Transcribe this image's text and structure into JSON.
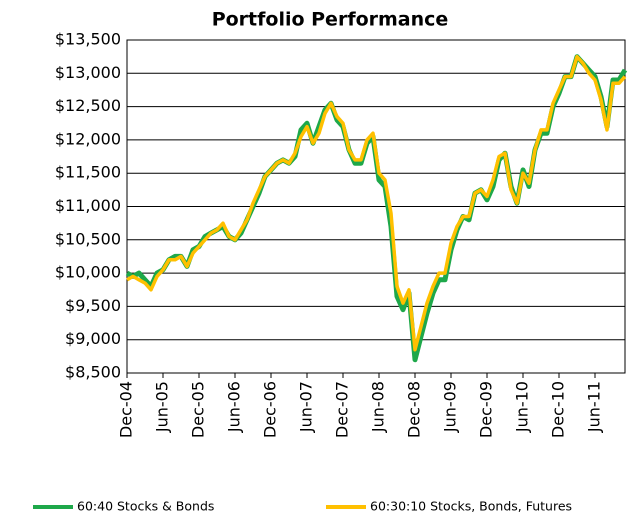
{
  "chart_data": {
    "type": "line",
    "title": "Portfolio Performance",
    "categories": [
      "Dec-04",
      null,
      null,
      null,
      null,
      null,
      "Jun-05",
      null,
      null,
      null,
      null,
      null,
      "Dec-05",
      null,
      null,
      null,
      null,
      null,
      "Jun-06",
      null,
      null,
      null,
      null,
      null,
      "Dec-06",
      null,
      null,
      null,
      null,
      null,
      "Jun-07",
      null,
      null,
      null,
      null,
      null,
      "Dec-07",
      null,
      null,
      null,
      null,
      null,
      "Jun-08",
      null,
      null,
      null,
      null,
      null,
      "Dec-08",
      null,
      null,
      null,
      null,
      null,
      "Jun-09",
      null,
      null,
      null,
      null,
      null,
      "Dec-09",
      null,
      null,
      null,
      null,
      null,
      "Jun-10",
      null,
      null,
      null,
      null,
      null,
      "Dec-10",
      null,
      null,
      null,
      null,
      null,
      "Jun-11",
      null,
      null,
      null,
      null,
      null
    ],
    "series": [
      {
        "name": "60:40 Stocks & Bonds",
        "color": "#1ea84a",
        "values": [
          10000,
          9950,
          10000,
          9900,
          9800,
          10000,
          10050,
          10200,
          10250,
          10250,
          10100,
          10350,
          10400,
          10550,
          10600,
          10650,
          10700,
          10550,
          10500,
          10600,
          10800,
          11000,
          11200,
          11450,
          11550,
          11650,
          11700,
          11650,
          11750,
          12150,
          12250,
          11950,
          12200,
          12450,
          12550,
          12300,
          12200,
          11850,
          11650,
          11650,
          11950,
          12050,
          11400,
          11300,
          10700,
          9650,
          9450,
          9700,
          8700,
          9050,
          9400,
          9700,
          9900,
          9900,
          10350,
          10650,
          10850,
          10800,
          11200,
          11250,
          11100,
          11300,
          11700,
          11800,
          11300,
          11050,
          11550,
          11300,
          11850,
          12100,
          12100,
          12500,
          12700,
          12950,
          12950,
          13250,
          13150,
          13050,
          12950,
          12650,
          12200,
          12900,
          12900,
          13050
        ]
      },
      {
        "name": "60:30:10 Stocks, Bonds, Futures",
        "color": "#ffc000",
        "values": [
          9900,
          9950,
          9900,
          9850,
          9750,
          9950,
          10050,
          10200,
          10200,
          10250,
          10100,
          10300,
          10400,
          10500,
          10600,
          10650,
          10750,
          10550,
          10500,
          10650,
          10800,
          11050,
          11250,
          11450,
          11550,
          11650,
          11700,
          11650,
          11800,
          12050,
          12200,
          11950,
          12100,
          12400,
          12550,
          12350,
          12250,
          11850,
          11700,
          11700,
          12000,
          12100,
          11500,
          11400,
          10900,
          9800,
          9550,
          9750,
          8850,
          9200,
          9550,
          9800,
          10000,
          10000,
          10450,
          10700,
          10850,
          10850,
          11200,
          11250,
          11150,
          11400,
          11750,
          11800,
          11250,
          11050,
          11500,
          11350,
          11850,
          12150,
          12150,
          12550,
          12750,
          12950,
          12950,
          13250,
          13150,
          13000,
          12900,
          12600,
          12150,
          12850,
          12850,
          12950
        ]
      }
    ],
    "ylim": [
      8500,
      13500
    ],
    "yticks": [
      {
        "value": 8500,
        "label": "$8,500"
      },
      {
        "value": 9000,
        "label": "$9,000"
      },
      {
        "value": 9500,
        "label": "$9,500"
      },
      {
        "value": 10000,
        "label": "$10,000"
      },
      {
        "value": 10500,
        "label": "$10,500"
      },
      {
        "value": 11000,
        "label": "$11,000"
      },
      {
        "value": 11500,
        "label": "$11,500"
      },
      {
        "value": 12000,
        "label": "$12,000"
      },
      {
        "value": 12500,
        "label": "$12,500"
      },
      {
        "value": 13000,
        "label": "$13,000"
      },
      {
        "value": 13500,
        "label": "$13,500"
      }
    ],
    "grid": true,
    "legend": "bottom"
  }
}
